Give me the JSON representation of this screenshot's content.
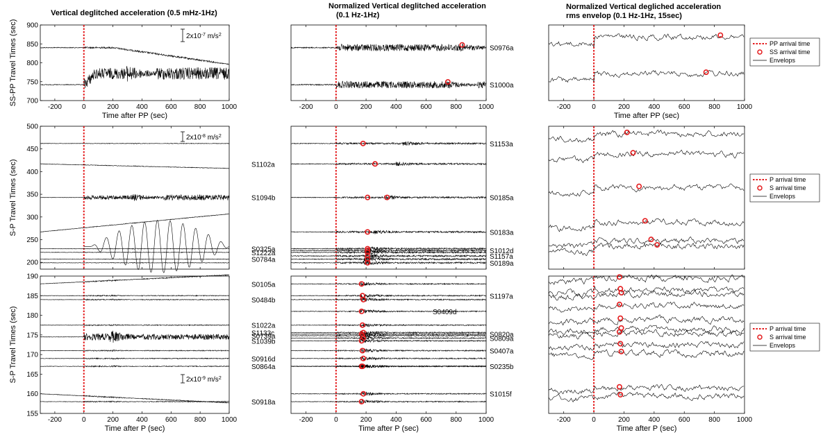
{
  "titles": {
    "col1": "Vertical  deglitched acceleration (0.5 mHz-1Hz)",
    "col2_line1": "Normalized Vertical  deglitched acceleration",
    "col2_line2": "(0.1 Hz-1Hz)",
    "col3_line1": "Normalized Vertical degliched acceleration",
    "col3_line2": "rms envelop (0.1 Hz-1Hz, 15sec)"
  },
  "xticks": [
    "-200",
    "0",
    "200",
    "400",
    "600",
    "800",
    "1000"
  ],
  "rows": [
    {
      "xlabel": "Time after PP (sec)",
      "ylabel": "SS-PP Travel Times (sec)",
      "yticks": [
        "700",
        "750",
        "800",
        "850",
        "900"
      ],
      "scale_label": "2x10",
      "scale_exp": "-7",
      "scale_unit": " m/s",
      "scale_unit_exp": "2",
      "legend": {
        "line": "PP arrival time",
        "marker": "SS arrival time",
        "env": "Envelops"
      },
      "stations_right": [
        "S0976a",
        "S1000a"
      ],
      "stations_left": []
    },
    {
      "xlabel": "",
      "ylabel": "S-P Travel Times (sec)",
      "yticks": [
        "200",
        "250",
        "300",
        "350",
        "400",
        "450",
        "500"
      ],
      "scale_label": "2x10",
      "scale_exp": "-8",
      "scale_unit": " m/s",
      "scale_unit_exp": "2",
      "legend": {
        "line": "P arrival time",
        "marker": "S arrival time",
        "env": "Envelops"
      },
      "stations_right": [
        "S1153a",
        "S0185a",
        "S0183a",
        "S1012d",
        "S1157a",
        "S0189a"
      ],
      "stations_left": [
        "S1102a",
        "S1094b",
        "S0325a",
        "S1222a",
        "S0784a"
      ]
    },
    {
      "xlabel": "Time after P (sec)",
      "ylabel": "S-P Travel Times (sec)",
      "yticks": [
        "155",
        "160",
        "165",
        "170",
        "175",
        "180",
        "185",
        "190"
      ],
      "scale_label": "2x10",
      "scale_exp": "-9",
      "scale_unit": " m/s",
      "scale_unit_exp": "2",
      "legend": {
        "line": "P arrival time",
        "marker": "S arrival time",
        "env": "Envelops"
      },
      "stations_right": [
        "S1197a",
        "S0409d",
        "S0820a",
        "S0809a",
        "S0407a",
        "S0235b",
        "S1015f"
      ],
      "stations_left": [
        "S0105a",
        "S0484b",
        "S1022a",
        "S1133c",
        "S0739a",
        "S1039b",
        "S0916d",
        "S0864a",
        "S0918a"
      ]
    }
  ],
  "colors": {
    "arrival_line": "#e41a1c",
    "marker": "#e41a1c",
    "trace": "#000000"
  },
  "chart_data": [
    {
      "type": "line",
      "panel": "row1-raw",
      "xlabel": "Time after PP (sec)",
      "ylabel": "SS-PP Travel Times (sec)",
      "xlim": [
        -300,
        1000
      ],
      "ylim": [
        700,
        900
      ],
      "series": [
        {
          "offset": 840,
          "ss_arrival": 845
        },
        {
          "offset": 742,
          "ss_arrival": 750
        }
      ]
    },
    {
      "type": "line",
      "panel": "row1-normalized",
      "xlabel": "Time after PP (sec)",
      "xlim": [
        -300,
        1000
      ],
      "ylim": [
        700,
        900
      ],
      "series": [
        {
          "name": "S0976a",
          "offset": 840,
          "ss_arrival": 840
        },
        {
          "name": "S1000a",
          "offset": 742,
          "ss_arrival": 745
        }
      ]
    },
    {
      "type": "line",
      "panel": "row1-envelope",
      "xlabel": "Time after PP (sec)",
      "xlim": [
        -300,
        1000
      ],
      "ylim": [
        700,
        900
      ],
      "series": [
        {
          "offset": 840,
          "ss_arrival": 840
        },
        {
          "offset": 742,
          "ss_arrival": 745
        }
      ]
    },
    {
      "type": "line",
      "panel": "row2-raw",
      "ylabel": "S-P Travel Times (sec)",
      "xlim": [
        -300,
        1000
      ],
      "ylim": [
        185,
        500
      ],
      "series": [
        {
          "offset": 462
        },
        {
          "offset": 417
        },
        {
          "offset": 343
        },
        {
          "offset": 267
        },
        {
          "offset": 230
        },
        {
          "offset": 222
        },
        {
          "offset": 207
        },
        {
          "offset": 199
        }
      ]
    },
    {
      "type": "line",
      "panel": "row2-normalized",
      "xlim": [
        -300,
        1000
      ],
      "ylim": [
        185,
        500
      ],
      "series": [
        {
          "name": "S1153a",
          "offset": 462,
          "s_arrival": 462
        },
        {
          "name": "S1102a",
          "offset": 417,
          "s_arrival": 417
        },
        {
          "name": "S0185a",
          "offset": 343,
          "s_arrival": 343
        },
        {
          "name": "S1094b",
          "offset": 343,
          "s_arrival": 340
        },
        {
          "name": "S0183a",
          "offset": 267,
          "s_arrival": 267
        },
        {
          "name": "S0325a",
          "offset": 230,
          "s_arrival": 230
        },
        {
          "name": "S1012d",
          "offset": 226,
          "s_arrival": 226
        },
        {
          "name": "S1222a",
          "offset": 222,
          "s_arrival": 222
        },
        {
          "name": "S1157a",
          "offset": 214,
          "s_arrival": 214
        },
        {
          "name": "S0784a",
          "offset": 207,
          "s_arrival": 207
        },
        {
          "name": "S0189a",
          "offset": 199,
          "s_arrival": 199
        }
      ]
    },
    {
      "type": "line",
      "panel": "row2-envelope",
      "xlim": [
        -300,
        1000
      ],
      "ylim": [
        185,
        500
      ],
      "series": [
        {
          "offset": 462,
          "s_arrival": 462
        },
        {
          "offset": 417,
          "s_arrival": 417
        },
        {
          "offset": 343,
          "s_arrival": 343
        },
        {
          "offset": 267,
          "s_arrival": 267
        },
        {
          "offset": 226,
          "s_arrival": 226
        },
        {
          "offset": 214,
          "s_arrival": 214
        }
      ]
    },
    {
      "type": "line",
      "panel": "row3-raw",
      "xlabel": "Time after P (sec)",
      "ylabel": "S-P Travel Times (sec)",
      "xlim": [
        -300,
        1000
      ],
      "ylim": [
        155,
        190
      ],
      "series": [
        {
          "offset": 188
        },
        {
          "offset": 185
        },
        {
          "offset": 184
        },
        {
          "offset": 177.5
        },
        {
          "offset": 174.5
        },
        {
          "offset": 171
        },
        {
          "offset": 169
        },
        {
          "offset": 167
        },
        {
          "offset": 160
        },
        {
          "offset": 158
        }
      ]
    },
    {
      "type": "line",
      "panel": "row3-normalized",
      "xlabel": "Time after P (sec)",
      "xlim": [
        -300,
        1000
      ],
      "ylim": [
        155,
        190
      ],
      "series": [
        {
          "name": "S0105a",
          "offset": 188,
          "s_arrival": 188
        },
        {
          "name": "S1197a",
          "offset": 185,
          "s_arrival": 185
        },
        {
          "name": "S0484b",
          "offset": 184,
          "s_arrival": 184
        },
        {
          "name": "S0409d",
          "offset": 181,
          "s_arrival": 181
        },
        {
          "name": "S1022a",
          "offset": 177.5,
          "s_arrival": 177.5
        },
        {
          "name": "S1133c",
          "offset": 175.6,
          "s_arrival": 175.6
        },
        {
          "name": "S0820a",
          "offset": 175.2,
          "s_arrival": 175.2
        },
        {
          "name": "S0739a",
          "offset": 174.8,
          "s_arrival": 174.8
        },
        {
          "name": "S0809a",
          "offset": 174.2,
          "s_arrival": 174.2
        },
        {
          "name": "S1039b",
          "offset": 173.5,
          "s_arrival": 173.5
        },
        {
          "name": "S0407a",
          "offset": 171,
          "s_arrival": 171
        },
        {
          "name": "S0916d",
          "offset": 169,
          "s_arrival": 169
        },
        {
          "name": "S0235b",
          "offset": 167,
          "s_arrival": 167
        },
        {
          "name": "S0864a",
          "offset": 167,
          "s_arrival": 167
        },
        {
          "name": "S1015f",
          "offset": 160,
          "s_arrival": 160
        },
        {
          "name": "S0918a",
          "offset": 158,
          "s_arrival": 158
        }
      ]
    },
    {
      "type": "line",
      "panel": "row3-envelope",
      "xlabel": "Time after P (sec)",
      "xlim": [
        -300,
        1000
      ],
      "ylim": [
        155,
        190
      ],
      "series": [
        {
          "offset": 188,
          "s_arrival": 188
        },
        {
          "offset": 185,
          "s_arrival": 185
        },
        {
          "offset": 184,
          "s_arrival": 184
        },
        {
          "offset": 181,
          "s_arrival": 181
        },
        {
          "offset": 177.5,
          "s_arrival": 177.5
        },
        {
          "offset": 175,
          "s_arrival": 175
        },
        {
          "offset": 174,
          "s_arrival": 174
        },
        {
          "offset": 171,
          "s_arrival": 171
        },
        {
          "offset": 169,
          "s_arrival": 169
        },
        {
          "offset": 160,
          "s_arrival": 160
        },
        {
          "offset": 158,
          "s_arrival": 158
        }
      ]
    }
  ]
}
